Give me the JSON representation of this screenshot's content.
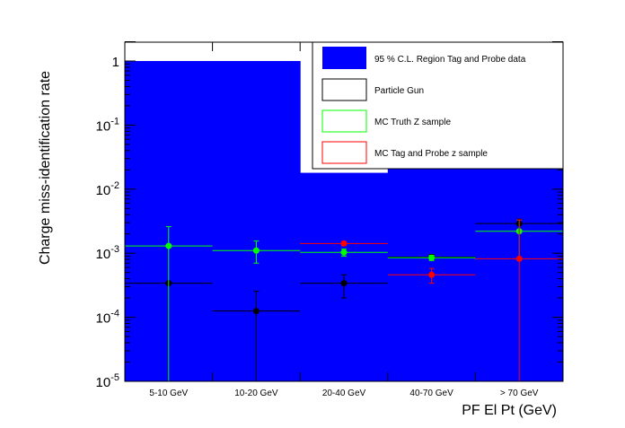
{
  "chart_data": {
    "type": "bar",
    "xlabel": "PF El Pt (GeV)",
    "ylabel": "Charge miss-identification rate",
    "yscale": "log",
    "ylim": [
      1e-05,
      2
    ],
    "categories": [
      "5-10 GeV",
      "10-20 GeV",
      "20-40 GeV",
      "40-70 GeV",
      "> 70 GeV"
    ],
    "yticks": [
      {
        "value": 1,
        "base": "1",
        "exp": ""
      },
      {
        "value": 0.1,
        "base": "10",
        "exp": "-1"
      },
      {
        "value": 0.01,
        "base": "10",
        "exp": "-2"
      },
      {
        "value": 0.001,
        "base": "10",
        "exp": "-3"
      },
      {
        "value": 0.0001,
        "base": "10",
        "exp": "-4"
      },
      {
        "value": 1e-05,
        "base": "10",
        "exp": "-5"
      }
    ],
    "band": {
      "name": "95 % C.L. Region Tag and Probe data",
      "color": "#0000ff",
      "upper": [
        1.0,
        1.0,
        0.018,
        0.021,
        0.45
      ]
    },
    "series": [
      {
        "name": "Particle Gun",
        "color": "#000000",
        "values": [
          0.00034,
          0.000125,
          0.00034,
          0.00087,
          0.0029
        ],
        "err_low": [
          0.00034,
          0.000125,
          0.00014,
          9e-05,
          0.0006
        ],
        "err_high": [
          0.0,
          0.00013,
          0.00012,
          9e-05,
          0.0005
        ]
      },
      {
        "name": "MC Truth Z sample",
        "color": "#00ff00",
        "values": [
          0.0013,
          0.0011,
          0.00103,
          0.00085,
          0.0022
        ],
        "err_low": [
          0.0013,
          0.0004,
          0.00013,
          8e-05,
          0.0014
        ],
        "err_high": [
          0.0013,
          0.00045,
          0.00013,
          8e-05,
          0.0011
        ]
      },
      {
        "name": "MC Tag and Probe z sample",
        "color": "#ff0000",
        "values": [
          null,
          null,
          0.00142,
          0.00046,
          0.00082
        ],
        "err_low": [
          null,
          null,
          0.0001,
          0.00012,
          0.00082
        ],
        "err_high": [
          null,
          null,
          0.0001,
          0.00012,
          0.0025
        ]
      }
    ],
    "legend": {
      "position": "top-right"
    }
  }
}
